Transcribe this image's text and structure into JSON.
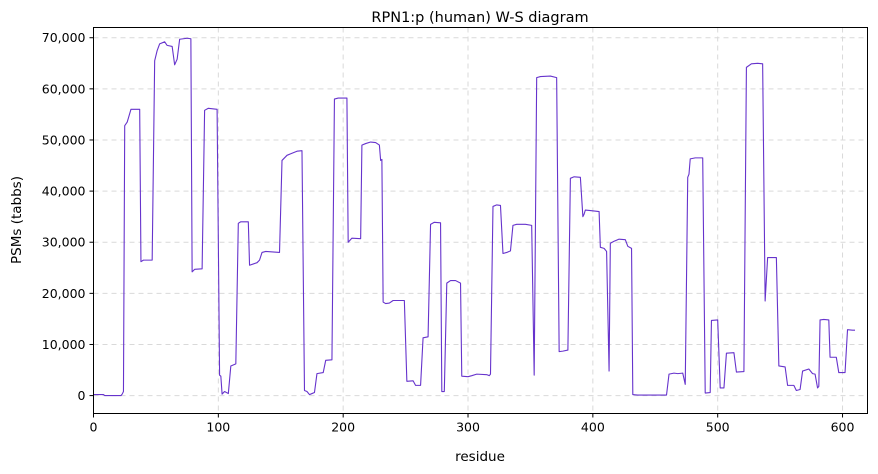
{
  "chart_data": {
    "type": "line",
    "title": "RPN1:p (human) W-S diagram",
    "xlabel": "residue",
    "ylabel": "PSMs (tabbs)",
    "xlim": [
      0,
      620
    ],
    "ylim": [
      -3500,
      72000
    ],
    "x_ticks": [
      0,
      100,
      200,
      300,
      400,
      500,
      600
    ],
    "x_tick_labels": [
      "0",
      "100",
      "200",
      "300",
      "400",
      "500",
      "600"
    ],
    "y_ticks": [
      0,
      10000,
      20000,
      30000,
      40000,
      50000,
      60000,
      70000
    ],
    "y_tick_labels": [
      "0",
      "10,000",
      "20,000",
      "30,000",
      "40,000",
      "50,000",
      "60,000",
      "70,000"
    ],
    "grid": true,
    "series": [
      {
        "color": "#6633cc",
        "points": [
          [
            0,
            200
          ],
          [
            2,
            200
          ],
          [
            8,
            200
          ],
          [
            9,
            0
          ],
          [
            22,
            0
          ],
          [
            23,
            300
          ],
          [
            24,
            800
          ],
          [
            25,
            52800
          ],
          [
            27,
            53500
          ],
          [
            30,
            56000
          ],
          [
            37,
            56000
          ],
          [
            38,
            26200
          ],
          [
            40,
            26500
          ],
          [
            47,
            26500
          ],
          [
            49,
            65500
          ],
          [
            51,
            67500
          ],
          [
            53,
            68800
          ],
          [
            57,
            69200
          ],
          [
            59,
            68500
          ],
          [
            63,
            68300
          ],
          [
            65,
            64700
          ],
          [
            67,
            65800
          ],
          [
            69,
            69700
          ],
          [
            75,
            69900
          ],
          [
            78,
            69800
          ],
          [
            79,
            24200
          ],
          [
            81,
            24700
          ],
          [
            87,
            24800
          ],
          [
            89,
            55800
          ],
          [
            92,
            56200
          ],
          [
            99,
            56000
          ],
          [
            101,
            4000
          ],
          [
            102,
            3800
          ],
          [
            103,
            300
          ],
          [
            105,
            800
          ],
          [
            108,
            400
          ],
          [
            110,
            5800
          ],
          [
            114,
            6200
          ],
          [
            116,
            33700
          ],
          [
            118,
            34000
          ],
          [
            124,
            34000
          ],
          [
            125,
            25500
          ],
          [
            131,
            26000
          ],
          [
            133,
            26500
          ],
          [
            135,
            28000
          ],
          [
            138,
            28200
          ],
          [
            149,
            28000
          ],
          [
            151,
            46000
          ],
          [
            155,
            47000
          ],
          [
            158,
            47300
          ],
          [
            163,
            47800
          ],
          [
            167,
            47900
          ],
          [
            169,
            1000
          ],
          [
            171,
            800
          ],
          [
            173,
            200
          ],
          [
            175,
            400
          ],
          [
            177,
            600
          ],
          [
            179,
            4300
          ],
          [
            184,
            4500
          ],
          [
            186,
            6900
          ],
          [
            191,
            7000
          ],
          [
            193,
            58000
          ],
          [
            196,
            58200
          ],
          [
            203,
            58200
          ],
          [
            204,
            30000
          ],
          [
            207,
            30800
          ],
          [
            214,
            30700
          ],
          [
            215,
            49000
          ],
          [
            218,
            49300
          ],
          [
            222,
            49600
          ],
          [
            226,
            49500
          ],
          [
            229,
            49000
          ],
          [
            230,
            46000
          ],
          [
            231,
            46200
          ],
          [
            232,
            18300
          ],
          [
            234,
            18000
          ],
          [
            237,
            18100
          ],
          [
            240,
            18600
          ],
          [
            249,
            18600
          ],
          [
            251,
            2800
          ],
          [
            256,
            2900
          ],
          [
            258,
            2000
          ],
          [
            262,
            2000
          ],
          [
            264,
            11300
          ],
          [
            268,
            11500
          ],
          [
            270,
            33500
          ],
          [
            273,
            33900
          ],
          [
            278,
            33800
          ],
          [
            279,
            800
          ],
          [
            281,
            800
          ],
          [
            283,
            22000
          ],
          [
            286,
            22500
          ],
          [
            290,
            22500
          ],
          [
            294,
            22000
          ],
          [
            295,
            3800
          ],
          [
            300,
            3700
          ],
          [
            303,
            3900
          ],
          [
            307,
            4200
          ],
          [
            315,
            4100
          ],
          [
            317,
            3900
          ],
          [
            318,
            4200
          ],
          [
            320,
            37000
          ],
          [
            323,
            37300
          ],
          [
            326,
            37200
          ],
          [
            328,
            27800
          ],
          [
            331,
            28000
          ],
          [
            334,
            28300
          ],
          [
            336,
            33300
          ],
          [
            339,
            33500
          ],
          [
            346,
            33500
          ],
          [
            351,
            33300
          ],
          [
            353,
            4000
          ],
          [
            355,
            62200
          ],
          [
            358,
            62400
          ],
          [
            366,
            62500
          ],
          [
            371,
            62200
          ],
          [
            373,
            8600
          ],
          [
            376,
            8700
          ],
          [
            380,
            8900
          ],
          [
            382,
            42500
          ],
          [
            385,
            42800
          ],
          [
            390,
            42700
          ],
          [
            392,
            35000
          ],
          [
            393,
            35500
          ],
          [
            394,
            36300
          ],
          [
            398,
            36200
          ],
          [
            405,
            36000
          ],
          [
            406,
            29000
          ],
          [
            409,
            28800
          ],
          [
            411,
            28200
          ],
          [
            413,
            4800
          ],
          [
            414,
            29800
          ],
          [
            417,
            30200
          ],
          [
            421,
            30600
          ],
          [
            426,
            30500
          ],
          [
            428,
            29200
          ],
          [
            431,
            28800
          ],
          [
            432,
            200
          ],
          [
            436,
            100
          ],
          [
            445,
            100
          ],
          [
            452,
            100
          ],
          [
            459,
            100
          ],
          [
            461,
            4200
          ],
          [
            465,
            4400
          ],
          [
            468,
            4300
          ],
          [
            472,
            4400
          ],
          [
            474,
            2200
          ],
          [
            476,
            42700
          ],
          [
            477,
            43300
          ],
          [
            478,
            46300
          ],
          [
            482,
            46500
          ],
          [
            488,
            46500
          ],
          [
            490,
            500
          ],
          [
            494,
            600
          ],
          [
            495,
            14700
          ],
          [
            500,
            14800
          ],
          [
            502,
            1500
          ],
          [
            505,
            1500
          ],
          [
            507,
            8300
          ],
          [
            513,
            8400
          ],
          [
            515,
            4600
          ],
          [
            521,
            4700
          ],
          [
            523,
            64200
          ],
          [
            527,
            64900
          ],
          [
            532,
            65000
          ],
          [
            536,
            64900
          ],
          [
            538,
            18500
          ],
          [
            540,
            27000
          ],
          [
            547,
            27000
          ],
          [
            549,
            5800
          ],
          [
            554,
            5600
          ],
          [
            556,
            2000
          ],
          [
            561,
            2000
          ],
          [
            563,
            1000
          ],
          [
            566,
            1200
          ],
          [
            568,
            4800
          ],
          [
            573,
            5200
          ],
          [
            576,
            4300
          ],
          [
            578,
            4200
          ],
          [
            580,
            1500
          ],
          [
            581,
            1800
          ],
          [
            582,
            14800
          ],
          [
            585,
            14900
          ],
          [
            589,
            14800
          ],
          [
            590,
            7500
          ],
          [
            595,
            7500
          ],
          [
            597,
            4500
          ],
          [
            602,
            4500
          ],
          [
            604,
            12900
          ],
          [
            608,
            12800
          ],
          [
            610,
            12800
          ]
        ]
      }
    ]
  }
}
